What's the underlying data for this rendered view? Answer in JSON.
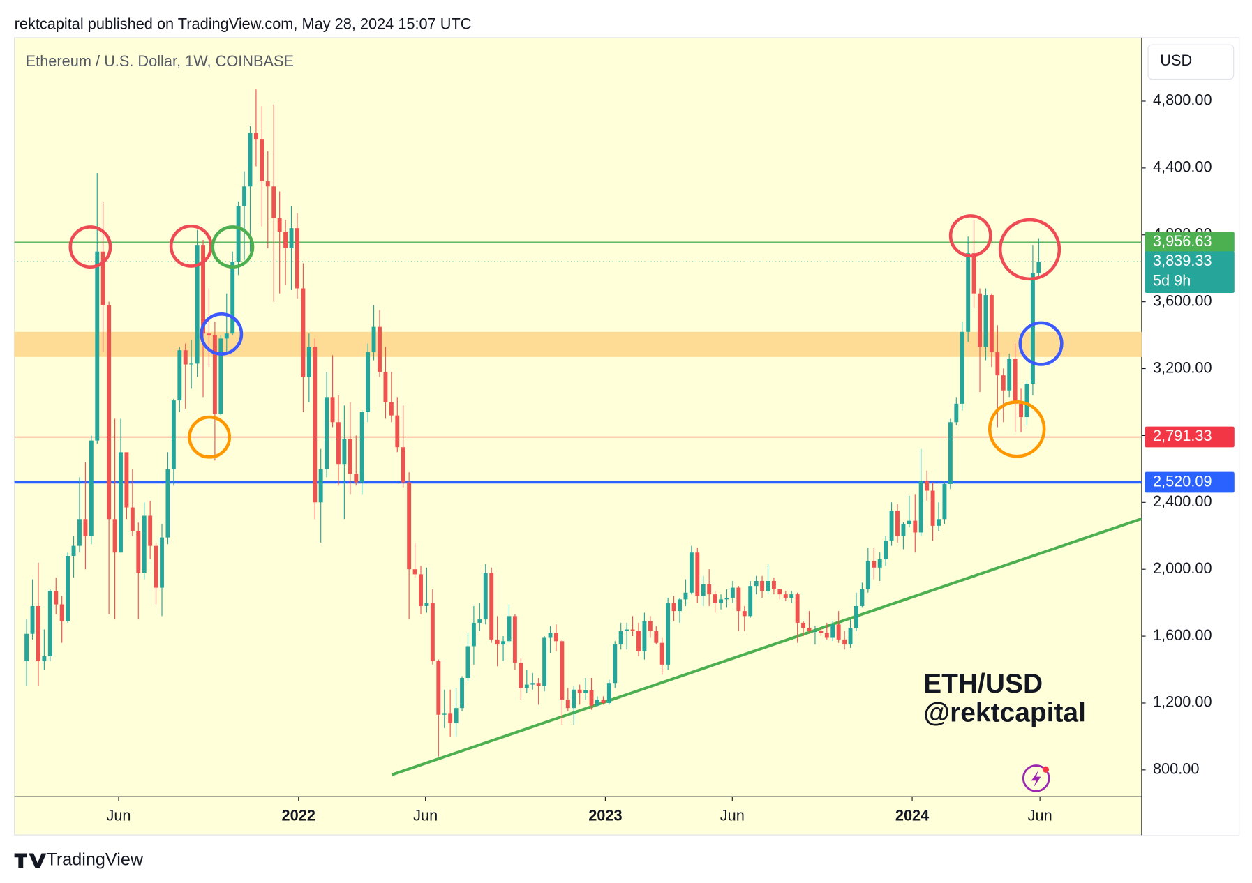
{
  "header": "rektcapital published on TradingView.com, May 28, 2024 15:07 UTC",
  "watermark": [
    "ETH/USD",
    "@rektcapital"
  ],
  "footer": "TradingView",
  "chart_data": {
    "type": "candlestick",
    "title": "Ethereum / U.S. Dollar, 1W, COINBASE",
    "axis_unit": "USD",
    "up_color": "#26a69a",
    "down_color": "#ef5350",
    "ylim": [
      640,
      5180
    ],
    "yticks": [
      {
        "value": 800,
        "label": "800.00"
      },
      {
        "value": 1200,
        "label": "1,200.00"
      },
      {
        "value": 1600,
        "label": "1,600.00"
      },
      {
        "value": 2000,
        "label": "2,000.00"
      },
      {
        "value": 2400,
        "label": "2,400.00"
      },
      {
        "value": 2800,
        "label": "2,800.00"
      },
      {
        "value": 3200,
        "label": "3,200.00"
      },
      {
        "value": 3600,
        "label": "3,600.00"
      },
      {
        "value": 4000,
        "label": "4,000.00"
      },
      {
        "value": 4400,
        "label": "4,400.00"
      },
      {
        "value": 4800,
        "label": "4,800.00"
      }
    ],
    "xlim": [
      "2021-01-28",
      "2024-09-30"
    ],
    "xticks": [
      {
        "value": "2021-06-01",
        "label": "Jun"
      },
      {
        "value": "2022-01-01",
        "label": "2022"
      },
      {
        "value": "2022-06-01",
        "label": "Jun"
      },
      {
        "value": "2023-01-01",
        "label": "2023"
      },
      {
        "value": "2023-06-01",
        "label": "Jun"
      },
      {
        "value": "2024-01-01",
        "label": "2024"
      },
      {
        "value": "2024-06-01",
        "label": "Jun"
      }
    ],
    "band": {
      "from": 3270,
      "to": 3420,
      "color": "#ffdc96"
    },
    "levels": [
      {
        "value": 3956.63,
        "label": "3,956.63",
        "color": "#4caf50",
        "width": 1.2
      },
      {
        "value": 2791.33,
        "label": "2,791.33",
        "color": "#f23645",
        "width": 1.2
      },
      {
        "value": 2520.09,
        "label": "2,520.09",
        "color": "#2962ff",
        "width": 3
      }
    ],
    "current": {
      "value": 3839.33,
      "label": "3,839.33",
      "countdown": "5d 9h",
      "color": "#26a69a"
    },
    "trendline": {
      "color": "#4caf50",
      "x": [
        "2022-04-22",
        "2024-09-30"
      ],
      "values": [
        771,
        2302
      ]
    },
    "x": [
      "2021-02-08",
      "2021-02-15",
      "2021-02-22",
      "2021-03-01",
      "2021-03-08",
      "2021-03-15",
      "2021-03-22",
      "2021-03-29",
      "2021-04-05",
      "2021-04-12",
      "2021-04-19",
      "2021-04-26",
      "2021-05-03",
      "2021-05-10",
      "2021-05-17",
      "2021-05-24",
      "2021-05-31",
      "2021-06-07",
      "2021-06-14",
      "2021-06-21",
      "2021-06-28",
      "2021-07-05",
      "2021-07-12",
      "2021-07-19",
      "2021-07-26",
      "2021-08-02",
      "2021-08-09",
      "2021-08-16",
      "2021-08-23",
      "2021-08-30",
      "2021-09-06",
      "2021-09-13",
      "2021-09-20",
      "2021-09-27",
      "2021-10-04",
      "2021-10-11",
      "2021-10-18",
      "2021-10-25",
      "2021-11-01",
      "2021-11-08",
      "2021-11-15",
      "2021-11-22",
      "2021-11-29",
      "2021-12-06",
      "2021-12-13",
      "2021-12-20",
      "2021-12-27",
      "2022-01-03",
      "2022-01-10",
      "2022-01-17",
      "2022-01-24",
      "2022-01-31",
      "2022-02-07",
      "2022-02-14",
      "2022-02-21",
      "2022-02-28",
      "2022-03-07",
      "2022-03-14",
      "2022-03-21",
      "2022-03-28",
      "2022-04-04",
      "2022-04-11",
      "2022-04-18",
      "2022-04-25",
      "2022-05-02",
      "2022-05-09",
      "2022-05-16",
      "2022-05-23",
      "2022-05-30",
      "2022-06-06",
      "2022-06-13",
      "2022-06-20",
      "2022-06-27",
      "2022-07-04",
      "2022-07-11",
      "2022-07-18",
      "2022-07-25",
      "2022-08-01",
      "2022-08-08",
      "2022-08-15",
      "2022-08-22",
      "2022-08-29",
      "2022-09-05",
      "2022-09-12",
      "2022-09-19",
      "2022-09-26",
      "2022-10-03",
      "2022-10-10",
      "2022-10-17",
      "2022-10-24",
      "2022-10-31",
      "2022-11-07",
      "2022-11-14",
      "2022-11-21",
      "2022-11-28",
      "2022-12-05",
      "2022-12-12",
      "2022-12-19",
      "2022-12-26",
      "2023-01-02",
      "2023-01-09",
      "2023-01-16",
      "2023-01-23",
      "2023-01-30",
      "2023-02-06",
      "2023-02-13",
      "2023-02-20",
      "2023-02-27",
      "2023-03-06",
      "2023-03-13",
      "2023-03-20",
      "2023-03-27",
      "2023-04-03",
      "2023-04-10",
      "2023-04-17",
      "2023-04-24",
      "2023-05-01",
      "2023-05-08",
      "2023-05-15",
      "2023-05-22",
      "2023-05-29",
      "2023-06-05",
      "2023-06-12",
      "2023-06-19",
      "2023-06-26",
      "2023-07-03",
      "2023-07-10",
      "2023-07-17",
      "2023-07-24",
      "2023-07-31",
      "2023-08-07",
      "2023-08-14",
      "2023-08-21",
      "2023-08-28",
      "2023-09-04",
      "2023-09-11",
      "2023-09-18",
      "2023-09-25",
      "2023-10-02",
      "2023-10-09",
      "2023-10-16",
      "2023-10-23",
      "2023-10-30",
      "2023-11-06",
      "2023-11-13",
      "2023-11-20",
      "2023-11-27",
      "2023-12-04",
      "2023-12-11",
      "2023-12-18",
      "2023-12-25",
      "2024-01-01",
      "2024-01-08",
      "2024-01-15",
      "2024-01-22",
      "2024-01-29",
      "2024-02-05",
      "2024-02-12",
      "2024-02-19",
      "2024-02-26",
      "2024-03-04",
      "2024-03-11",
      "2024-03-18",
      "2024-03-25",
      "2024-04-01",
      "2024-04-08",
      "2024-04-15",
      "2024-04-22",
      "2024-04-29",
      "2024-05-06",
      "2024-05-13",
      "2024-05-20",
      "2024-05-27"
    ],
    "open": [
      1450,
      1614,
      1780,
      1450,
      1480,
      1870,
      1790,
      1690,
      2080,
      2140,
      2300,
      2200,
      2770,
      3900,
      3580,
      2300,
      2100,
      2700,
      2370,
      2230,
      1980,
      2320,
      2140,
      1890,
      2190,
      2600,
      3010,
      3310,
      3225,
      3230,
      3940,
      3410,
      3400,
      2930,
      3380,
      3410,
      3840,
      4170,
      4290,
      4610,
      4570,
      4320,
      4290,
      4100,
      4020,
      3920,
      4040,
      3680,
      3150,
      3330,
      2400,
      2600,
      3030,
      2880,
      2630,
      2780,
      2570,
      2520,
      2940,
      3300,
      3450,
      3180,
      3000,
      2920,
      2730,
      2520,
      2000,
      1970,
      1780,
      1800,
      1450,
      1130,
      1140,
      1080,
      1170,
      1350,
      1540,
      1680,
      1700,
      1980,
      1580,
      1550,
      1570,
      1720,
      1440,
      1290,
      1310,
      1320,
      1300,
      1590,
      1620,
      1570,
      1220,
      1170,
      1280,
      1260,
      1275,
      1185,
      1220,
      1200,
      1320,
      1550,
      1630,
      1640,
      1630,
      1510,
      1690,
      1630,
      1560,
      1430,
      1800,
      1750,
      1820,
      1860,
      2100,
      1840,
      1910,
      1850,
      1800,
      1820,
      1830,
      1890,
      1750,
      1720,
      1900,
      1930,
      1870,
      1930,
      1880,
      1850,
      1830,
      1850,
      1680,
      1650,
      1630,
      1630,
      1620,
      1590,
      1670,
      1580,
      1550,
      1650,
      1780,
      1880,
      2050,
      2010,
      2060,
      2170,
      2350,
      2200,
      2270,
      2290,
      2220,
      2530,
      2470,
      2260,
      2300,
      2510,
      2880,
      2990,
      3420,
      3890,
      3650,
      3330,
      3640,
      3300,
      3160,
      3070,
      3260,
      2990,
      2910,
      3110,
      3770
    ],
    "high": [
      1700,
      1940,
      2040,
      1640,
      1880,
      1950,
      1840,
      2100,
      2200,
      2550,
      2640,
      2800,
      4370,
      4200,
      3600,
      2900,
      2900,
      2700,
      2600,
      2280,
      2400,
      2410,
      2160,
      2270,
      2700,
      3020,
      3330,
      3350,
      3370,
      4030,
      3970,
      3680,
      3480,
      3400,
      3650,
      3900,
      4200,
      4380,
      4650,
      4870,
      4770,
      4500,
      4780,
      4260,
      4090,
      4170,
      4130,
      3830,
      3410,
      3380,
      2720,
      3180,
      3280,
      3040,
      2980,
      3000,
      2800,
      2950,
      3350,
      3580,
      3550,
      3330,
      3180,
      3030,
      2980,
      2580,
      2160,
      2020,
      2010,
      1880,
      1460,
      1280,
      1280,
      1290,
      1360,
      1620,
      1780,
      1800,
      2030,
      2010,
      1720,
      1600,
      1790,
      1730,
      1470,
      1400,
      1380,
      1350,
      1600,
      1660,
      1670,
      1580,
      1290,
      1300,
      1310,
      1350,
      1350,
      1240,
      1240,
      1340,
      1570,
      1680,
      1680,
      1720,
      1680,
      1740,
      1720,
      1660,
      1590,
      1830,
      1840,
      1830,
      1940,
      2140,
      2130,
      1960,
      2000,
      1870,
      1850,
      1880,
      1930,
      1900,
      1780,
      1930,
      1960,
      1960,
      2030,
      1950,
      1880,
      1870,
      1870,
      1860,
      1690,
      1750,
      1660,
      1650,
      1680,
      1690,
      1750,
      1630,
      1700,
      1860,
      1920,
      2130,
      2130,
      2100,
      2200,
      2400,
      2390,
      2280,
      2440,
      2450,
      2720,
      2590,
      2520,
      2400,
      2530,
      2900,
      3030,
      3480,
      3990,
      4090,
      3680,
      3680,
      3650,
      3460,
      3200,
      3290,
      3350,
      3080,
      3130,
      3940,
      3980
    ],
    "low": [
      1300,
      1580,
      1300,
      1400,
      1450,
      1730,
      1560,
      1680,
      1950,
      2100,
      2000,
      2150,
      2750,
      3300,
      1730,
      1700,
      2100,
      2300,
      2200,
      1700,
      1940,
      2060,
      1790,
      1720,
      2150,
      2500,
      2940,
      2960,
      3080,
      3150,
      3030,
      3210,
      2650,
      2920,
      3300,
      3400,
      3760,
      3850,
      3900,
      4410,
      4050,
      3920,
      3600,
      3650,
      3700,
      3670,
      3620,
      2940,
      3000,
      2300,
      2160,
      2550,
      2850,
      2500,
      2300,
      2450,
      2500,
      2450,
      2880,
      3250,
      3150,
      2900,
      2880,
      2700,
      2490,
      1700,
      1950,
      1730,
      1740,
      1430,
      880,
      1050,
      1000,
      1000,
      1150,
      1330,
      1430,
      1630,
      1670,
      1560,
      1420,
      1450,
      1560,
      1400,
      1220,
      1260,
      1280,
      1190,
      1270,
      1500,
      1510,
      1070,
      1150,
      1070,
      1190,
      1220,
      1160,
      1180,
      1190,
      1190,
      1290,
      1520,
      1520,
      1600,
      1480,
      1460,
      1590,
      1550,
      1370,
      1400,
      1690,
      1680,
      1780,
      1850,
      1800,
      1780,
      1780,
      1740,
      1760,
      1770,
      1800,
      1630,
      1630,
      1710,
      1850,
      1830,
      1850,
      1850,
      1820,
      1810,
      1800,
      1560,
      1600,
      1620,
      1550,
      1600,
      1580,
      1570,
      1560,
      1520,
      1530,
      1630,
      1770,
      1860,
      1940,
      1930,
      2020,
      2140,
      2160,
      2120,
      2250,
      2100,
      2200,
      2410,
      2170,
      2230,
      2270,
      2480,
      2860,
      2950,
      3360,
      3560,
      3060,
      3250,
      3210,
      2850,
      2880,
      3030,
      2820,
      2820,
      2860,
      3040,
      3740
    ],
    "close": [
      1614,
      1780,
      1450,
      1480,
      1870,
      1790,
      1690,
      2080,
      2140,
      2300,
      2200,
      2770,
      3900,
      3580,
      2300,
      2100,
      2700,
      2370,
      2230,
      1980,
      2320,
      2140,
      1890,
      2190,
      2600,
      3010,
      3310,
      3225,
      3230,
      3940,
      3410,
      3400,
      2930,
      3380,
      3410,
      3840,
      4170,
      4290,
      4610,
      4570,
      4320,
      4290,
      4100,
      4020,
      3920,
      4040,
      3680,
      3150,
      3330,
      2400,
      2600,
      3030,
      2880,
      2630,
      2780,
      2570,
      2520,
      2940,
      3300,
      3450,
      3180,
      3000,
      2920,
      2730,
      2520,
      2000,
      1970,
      1780,
      1800,
      1450,
      1130,
      1140,
      1080,
      1170,
      1350,
      1540,
      1680,
      1700,
      1980,
      1580,
      1550,
      1570,
      1720,
      1440,
      1290,
      1310,
      1320,
      1300,
      1590,
      1620,
      1570,
      1220,
      1170,
      1280,
      1260,
      1275,
      1185,
      1220,
      1200,
      1320,
      1550,
      1630,
      1640,
      1630,
      1510,
      1690,
      1630,
      1560,
      1430,
      1800,
      1750,
      1820,
      1860,
      2100,
      1840,
      1910,
      1850,
      1800,
      1820,
      1830,
      1890,
      1750,
      1720,
      1900,
      1930,
      1870,
      1930,
      1880,
      1850,
      1830,
      1850,
      1680,
      1650,
      1630,
      1630,
      1620,
      1590,
      1670,
      1580,
      1550,
      1650,
      1780,
      1880,
      2050,
      2010,
      2060,
      2170,
      2350,
      2200,
      2270,
      2290,
      2220,
      2530,
      2470,
      2260,
      2300,
      2510,
      2880,
      2990,
      3420,
      3890,
      3650,
      3330,
      3640,
      3300,
      3160,
      3070,
      3260,
      2990,
      2910,
      3110,
      3770,
      3839.33
    ]
  }
}
